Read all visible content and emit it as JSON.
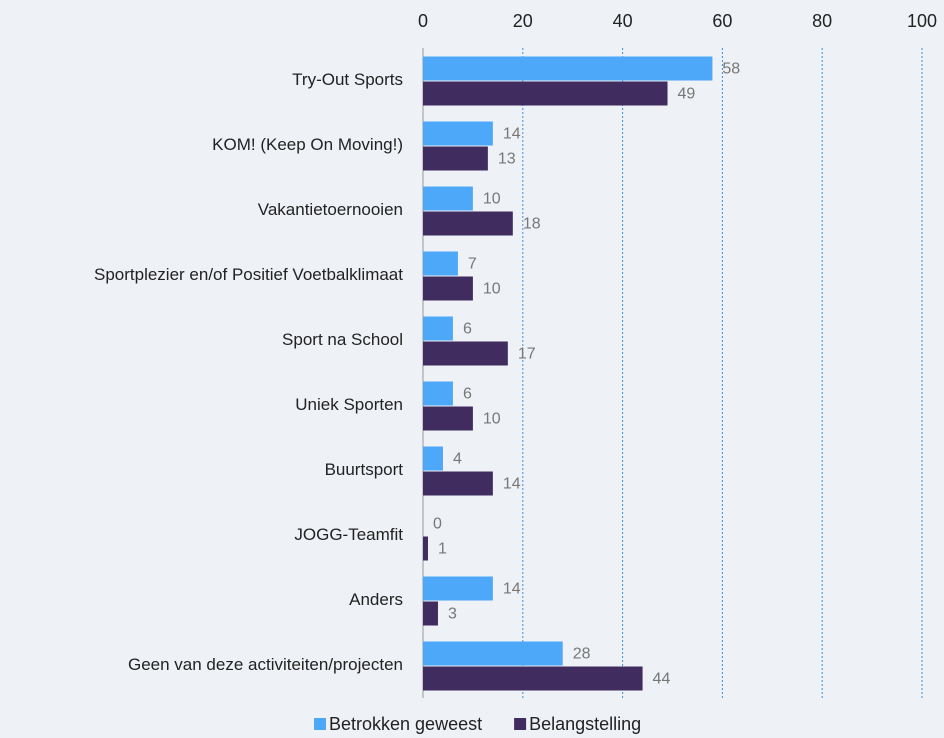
{
  "chart_data": {
    "type": "barh",
    "categories": [
      "Try-Out Sports",
      "KOM! (Keep On Moving!)",
      "Vakantietoernooien",
      "Sportplezier en/of Positief Voetbalklimaat",
      "Sport na School",
      "Uniek Sporten",
      "Buurtsport",
      "JOGG-Teamfit",
      "Anders",
      "Geen van deze activiteiten/projecten"
    ],
    "series": [
      {
        "name": "Betrokken geweest",
        "color": "#4ea8f9",
        "values": [
          58,
          14,
          10,
          7,
          6,
          6,
          4,
          0,
          14,
          28
        ]
      },
      {
        "name": "Belangstelling",
        "color": "#402c5e",
        "values": [
          49,
          13,
          18,
          10,
          17,
          10,
          14,
          1,
          3,
          44
        ]
      }
    ],
    "xlim": [
      0,
      100
    ],
    "xticks": [
      0,
      20,
      40,
      60,
      80,
      100
    ],
    "grid": true,
    "legend": "bottom"
  }
}
